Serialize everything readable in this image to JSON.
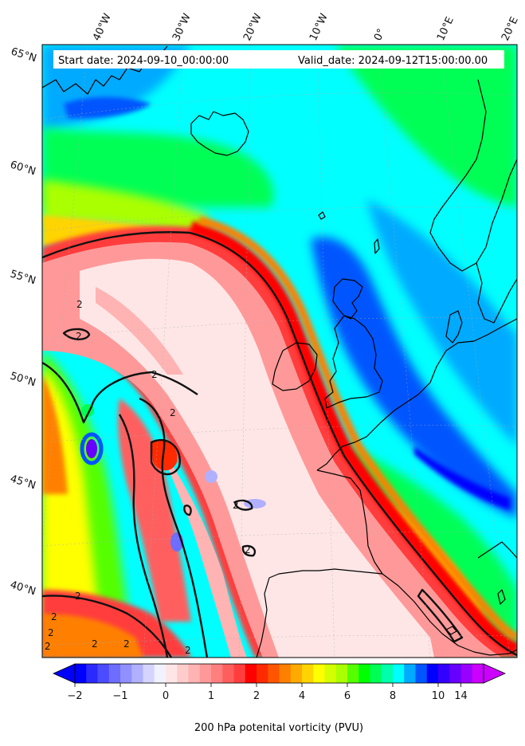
{
  "chart_data": {
    "type": "heatmap",
    "header": {
      "start_date": "Start date: 2024-09-10_00:00:00",
      "valid_date": "Valid_date: 2024-09-12T15:00:00.00"
    },
    "lon_labels": [
      "40°W",
      "30°W",
      "20°W",
      "10°W",
      "0°",
      "10°E",
      "20°E"
    ],
    "lat_labels": [
      "65°N",
      "60°N",
      "55°N",
      "50°N",
      "45°N",
      "40°N"
    ],
    "colorbar": {
      "label": "200 hPa potenital vorticity (PVU)",
      "tick_values": [
        "−2",
        "−1",
        "0",
        "1",
        "2",
        "4",
        "6",
        "8",
        "10",
        "14"
      ],
      "colors": [
        "#0000ff",
        "#2a2aff",
        "#4b4bff",
        "#6d6dff",
        "#9090ff",
        "#b0b0ff",
        "#d4d4ff",
        "#f2f2ff",
        "#ffe6e6",
        "#ffcccc",
        "#ffb3b3",
        "#ff9999",
        "#ff7f7f",
        "#ff5e5e",
        "#ff3d3d",
        "#ff0000",
        "#ff2a00",
        "#ff5500",
        "#ff8000",
        "#ffaa00",
        "#ffd400",
        "#ffff00",
        "#d4ff00",
        "#aaff00",
        "#55ff00",
        "#00ff00",
        "#00ff55",
        "#00ffaa",
        "#00ffff",
        "#00aaff",
        "#0055ff",
        "#0000ff",
        "#3300ff",
        "#6600ff",
        "#9900ff",
        "#cc00ff"
      ],
      "under_color": "#0000ff",
      "over_color": "#cc00ff"
    },
    "contour_label": "2",
    "variable": "200 hPa potential vorticity",
    "units": "PVU"
  }
}
